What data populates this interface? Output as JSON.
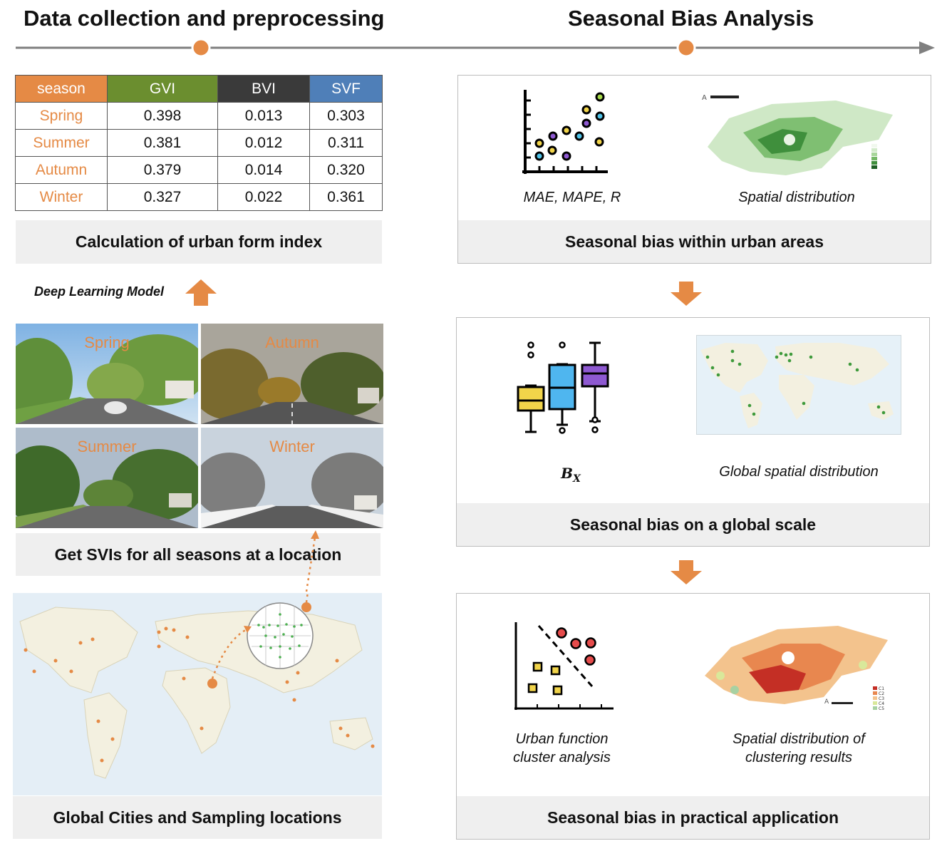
{
  "left": {
    "heading": "Data collection and preprocessing",
    "table": {
      "headers": [
        "season",
        "GVI",
        "BVI",
        "SVF"
      ],
      "header_colors": [
        "#e58a45",
        "#6b8e2f",
        "#3a3a3a",
        "#4f7fb8"
      ],
      "rows": [
        {
          "season": "Spring",
          "gvi": "0.398",
          "bvi": "0.013",
          "svf": "0.303"
        },
        {
          "season": "Summer",
          "gvi": "0.381",
          "bvi": "0.012",
          "svf": "0.311"
        },
        {
          "season": "Autumn",
          "gvi": "0.379",
          "bvi": "0.014",
          "svf": "0.320"
        },
        {
          "season": "Winter",
          "gvi": "0.327",
          "bvi": "0.022",
          "svf": "0.361"
        }
      ]
    },
    "index_caption": "Calculation of urban form index",
    "model_label": "Deep Learning Model",
    "photos": [
      "Spring",
      "Autumn",
      "Summer",
      "Winter"
    ],
    "svi_caption": "Get SVIs for all seasons at a location",
    "map_caption": "Global Cities and Sampling locations"
  },
  "right": {
    "heading": "Seasonal Bias Analysis",
    "panel1": {
      "left_label": "MAE, MAPE, R",
      "right_label": "Spatial distribution",
      "caption": "Seasonal bias within urban areas"
    },
    "panel2": {
      "left_label": "B",
      "left_label_sub": "X",
      "right_label": "Global spatial distribution",
      "caption": "Seasonal bias on a global scale"
    },
    "panel3": {
      "left_label": "Urban function cluster analysis",
      "right_label": "Spatial distribution of clustering results",
      "caption": "Seasonal bias in practical application",
      "legend": [
        "C1",
        "C2",
        "C3",
        "C4",
        "C5"
      ]
    }
  },
  "colors": {
    "accent": "#e58a45",
    "timeline": "#7f7f7f",
    "caption_bg": "#efefef"
  }
}
